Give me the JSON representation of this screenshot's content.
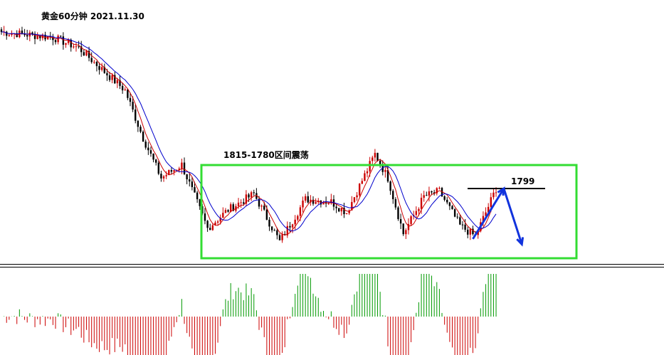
{
  "title": "黄金60分钟 2021.11.30",
  "chart_data": {
    "type": "candlestick",
    "title": "黄金60分钟 2021.11.30",
    "annotations": [
      {
        "kind": "range-box",
        "text": "1815-1780区间震荡",
        "upper": 1815,
        "lower": 1780
      },
      {
        "kind": "horizontal-line",
        "text": "1799",
        "value": 1799
      }
    ],
    "price_anchors": [
      {
        "bar": 0,
        "price": 1858
      },
      {
        "bar": 20,
        "price": 1856
      },
      {
        "bar": 30,
        "price": 1852
      },
      {
        "bar": 40,
        "price": 1843
      },
      {
        "bar": 48,
        "price": 1836
      },
      {
        "bar": 55,
        "price": 1818
      },
      {
        "bar": 62,
        "price": 1803
      },
      {
        "bar": 70,
        "price": 1808
      },
      {
        "bar": 80,
        "price": 1784
      },
      {
        "bar": 88,
        "price": 1791
      },
      {
        "bar": 98,
        "price": 1797
      },
      {
        "bar": 108,
        "price": 1779
      },
      {
        "bar": 118,
        "price": 1795
      },
      {
        "bar": 128,
        "price": 1794
      },
      {
        "bar": 134,
        "price": 1790
      },
      {
        "bar": 145,
        "price": 1812
      },
      {
        "bar": 150,
        "price": 1803
      },
      {
        "bar": 156,
        "price": 1782
      },
      {
        "bar": 164,
        "price": 1796
      },
      {
        "bar": 170,
        "price": 1798
      },
      {
        "bar": 178,
        "price": 1785
      },
      {
        "bar": 184,
        "price": 1781
      },
      {
        "bar": 192,
        "price": 1799
      }
    ],
    "projection": [
      {
        "bar": 183,
        "price": 1780
      },
      {
        "bar": 195,
        "price": 1799
      },
      {
        "bar": 202,
        "price": 1778
      }
    ],
    "moving_averages": [
      {
        "period": 5,
        "color": "#cc0000"
      },
      {
        "period": 10,
        "color": "#0000cc"
      }
    ],
    "indicator": {
      "type": "histogram",
      "up_color": "#009900",
      "down_color": "#cc0000"
    },
    "colors": {
      "up": "#cc0000",
      "down": "#000000",
      "box": "#33dd33",
      "arrow": "#1133dd",
      "level": "#000000"
    }
  }
}
